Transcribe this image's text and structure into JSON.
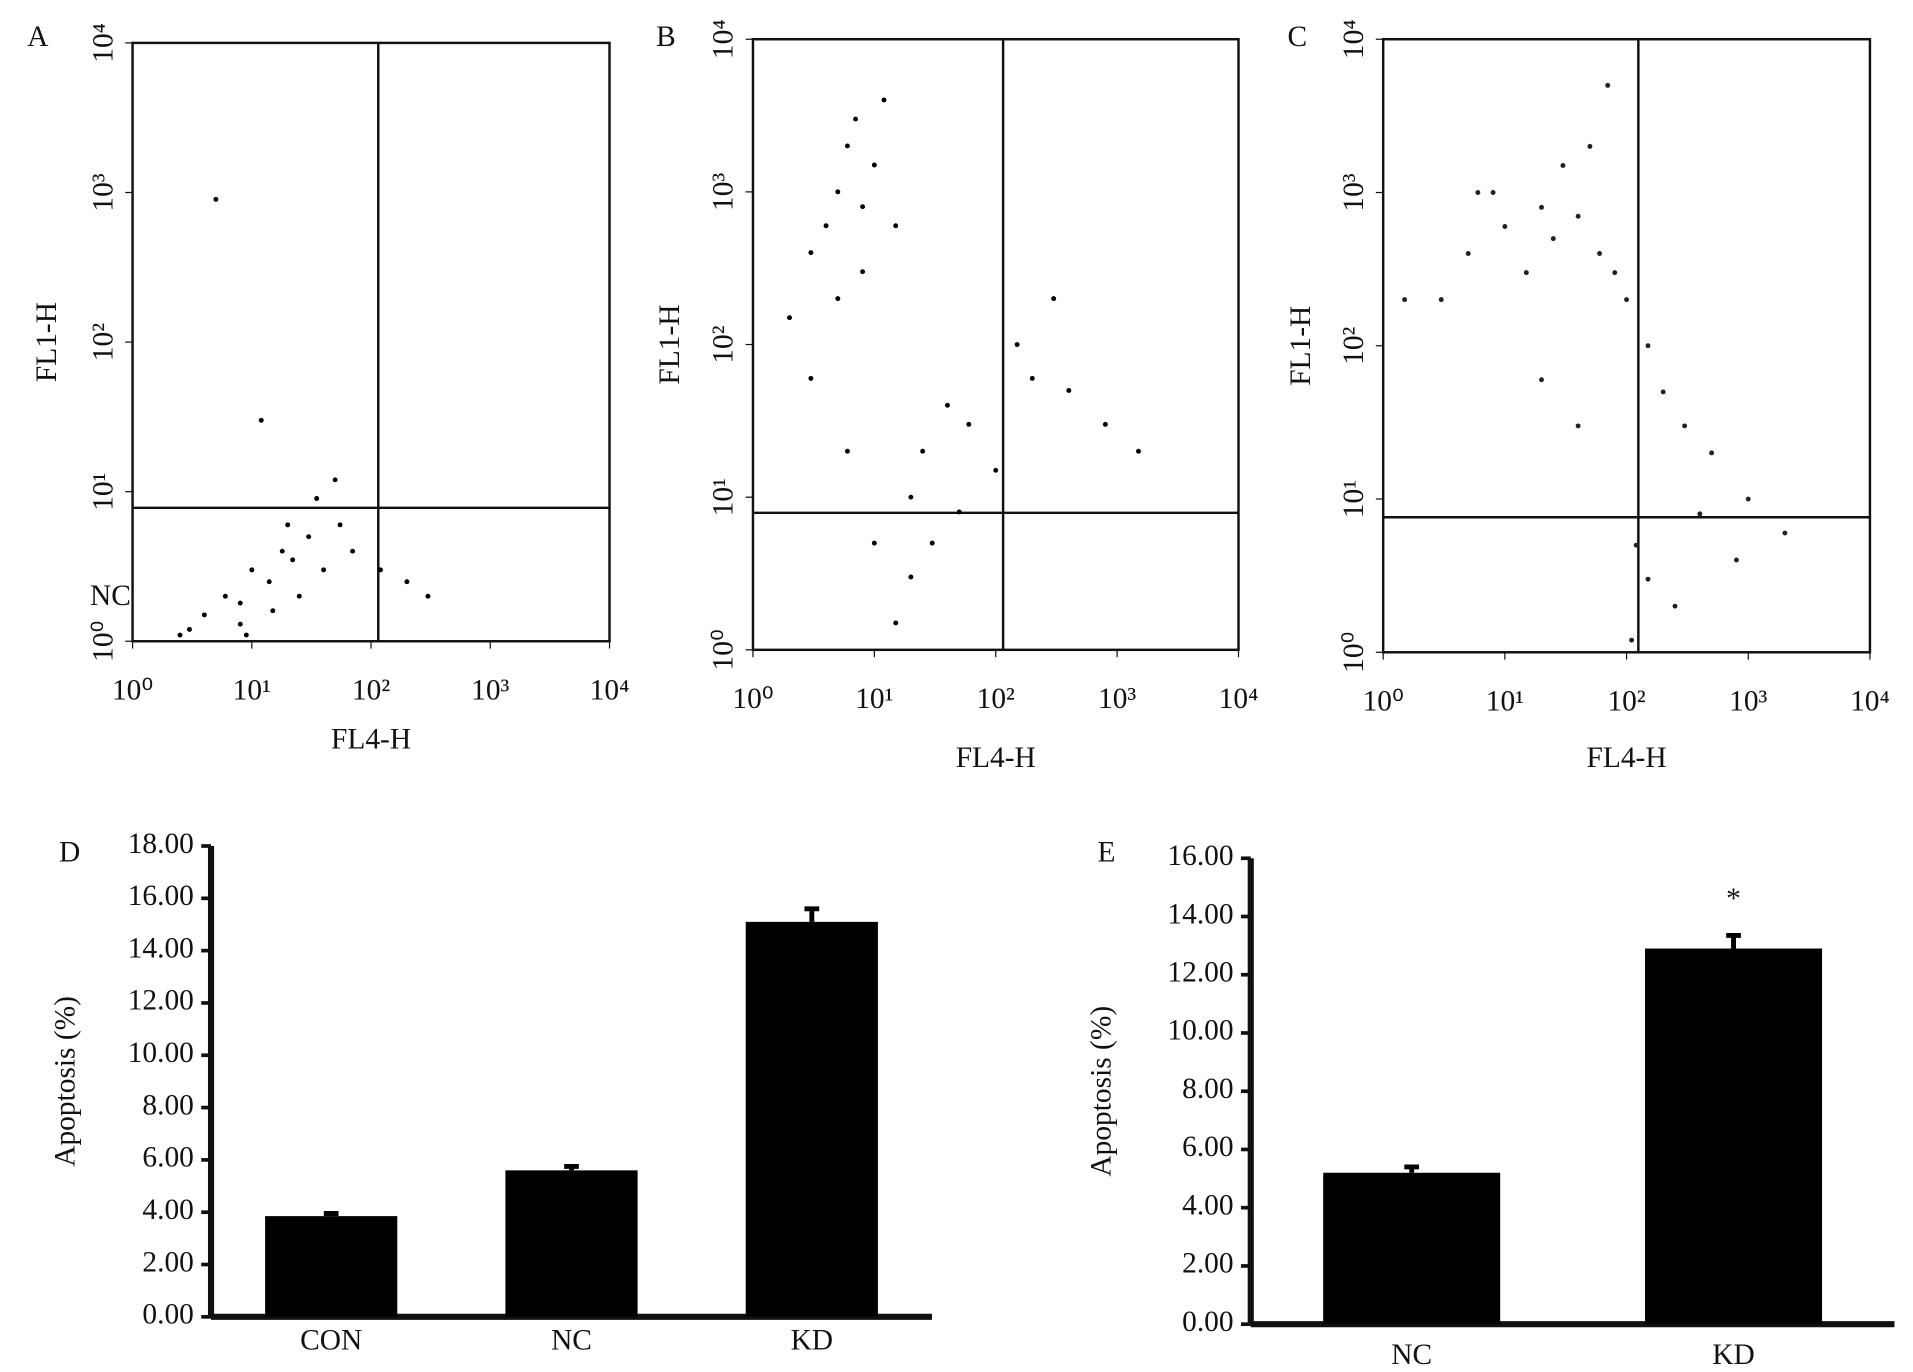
{
  "chart_data": [
    {
      "type": "scatter",
      "label": "A",
      "annotation": "NC",
      "xlabel": "FL4-H",
      "ylabel": "FL1-H",
      "xscale": "log",
      "yscale": "log",
      "color": "#000000",
      "xlim": [
        1,
        10000
      ],
      "ylim": [
        1,
        10000
      ],
      "xticks": [
        {
          "value": 1,
          "label": "10⁰"
        },
        {
          "value": 10,
          "label": "10¹"
        },
        {
          "value": 100,
          "label": "10²"
        },
        {
          "value": 1000,
          "label": "10³"
        },
        {
          "value": 10000,
          "label": "10⁴"
        }
      ],
      "yticks": [
        {
          "value": 1,
          "label": "10⁰"
        },
        {
          "value": 10,
          "label": "10¹"
        },
        {
          "value": 100,
          "label": "10²"
        },
        {
          "value": 1000,
          "label": "10³"
        },
        {
          "value": 10000,
          "label": "10⁴"
        }
      ],
      "quadrant_x": 115,
      "quadrant_y": 7.8,
      "x": [
        5,
        12,
        3,
        4,
        6,
        8,
        10,
        14,
        18,
        22,
        25,
        30,
        40,
        55,
        70,
        120,
        200,
        300,
        8,
        15,
        20,
        35,
        9,
        50,
        2.5
      ],
      "values": [
        900,
        30,
        1.2,
        1.5,
        2,
        1.8,
        3,
        2.5,
        4,
        3.5,
        2,
        5,
        3,
        6,
        4,
        3,
        2.5,
        2,
        1.3,
        1.6,
        6,
        9,
        1.1,
        12,
        1.1
      ]
    },
    {
      "type": "scatter",
      "label": "B",
      "xlabel": "FL4-H",
      "ylabel": "FL1-H",
      "xscale": "log",
      "yscale": "log",
      "color": "#000000",
      "xlim": [
        1,
        10000
      ],
      "ylim": [
        1,
        10000
      ],
      "xticks": [
        {
          "value": 1,
          "label": "10⁰"
        },
        {
          "value": 10,
          "label": "10¹"
        },
        {
          "value": 100,
          "label": "10²"
        },
        {
          "value": 1000,
          "label": "10³"
        },
        {
          "value": 10000,
          "label": "10⁴"
        }
      ],
      "yticks": [
        {
          "value": 1,
          "label": "10⁰"
        },
        {
          "value": 10,
          "label": "10¹"
        },
        {
          "value": 100,
          "label": "10²"
        },
        {
          "value": 1000,
          "label": "10³"
        },
        {
          "value": 10000,
          "label": "10⁴"
        }
      ],
      "quadrant_x": 115,
      "quadrant_y": 7.9,
      "x": [
        2,
        3,
        4,
        5,
        6,
        7,
        8,
        10,
        12,
        15,
        3,
        5,
        8,
        20,
        25,
        30,
        40,
        60,
        100,
        150,
        200,
        400,
        800,
        1500,
        20,
        15,
        50,
        300,
        6,
        10
      ],
      "values": [
        150,
        400,
        600,
        1000,
        2000,
        3000,
        800,
        1500,
        4000,
        600,
        60,
        200,
        300,
        10,
        20,
        5,
        40,
        30,
        15,
        100,
        60,
        50,
        30,
        20,
        3,
        1.5,
        8,
        200,
        20,
        5
      ]
    },
    {
      "type": "scatter",
      "label": "C",
      "xlabel": "FL4-H",
      "ylabel": "FL1-H",
      "xscale": "log",
      "yscale": "log",
      "color": "#222222",
      "xlim": [
        1,
        10000
      ],
      "ylim": [
        1,
        10000
      ],
      "xticks": [
        {
          "value": 1,
          "label": "10⁰"
        },
        {
          "value": 10,
          "label": "10¹"
        },
        {
          "value": 100,
          "label": "10²"
        },
        {
          "value": 1000,
          "label": "10³"
        },
        {
          "value": 10000,
          "label": "10⁴"
        }
      ],
      "yticks": [
        {
          "value": 1,
          "label": "10⁰"
        },
        {
          "value": 10,
          "label": "10¹"
        },
        {
          "value": 100,
          "label": "10²"
        },
        {
          "value": 1000,
          "label": "10³"
        },
        {
          "value": 10000,
          "label": "10⁴"
        }
      ],
      "quadrant_x": 125,
      "quadrant_y": 7.6,
      "x": [
        5,
        8,
        10,
        15,
        20,
        25,
        30,
        40,
        50,
        60,
        80,
        100,
        3,
        150,
        200,
        300,
        500,
        1000,
        2000,
        120,
        150,
        250,
        20,
        40,
        1.5,
        6,
        70,
        400,
        800,
        110
      ],
      "values": [
        400,
        1000,
        600,
        300,
        800,
        500,
        1500,
        700,
        2000,
        400,
        300,
        200,
        200,
        100,
        50,
        30,
        20,
        10,
        6,
        5,
        3,
        2,
        60,
        30,
        200,
        1000,
        5000,
        8,
        4,
        1.2
      ]
    },
    {
      "type": "bar",
      "label": "D",
      "ylabel": "Apoptosis (%)",
      "color": "#000000",
      "categories": [
        "CON",
        "NC",
        "KD"
      ],
      "values": [
        3.85,
        5.6,
        15.1
      ],
      "errors": [
        0.1,
        0.15,
        0.5
      ],
      "ylim": [
        0,
        18
      ],
      "yticks": [
        {
          "value": 0,
          "label": "0.00"
        },
        {
          "value": 2,
          "label": "2.00"
        },
        {
          "value": 4,
          "label": "4.00"
        },
        {
          "value": 6,
          "label": "6.00"
        },
        {
          "value": 8,
          "label": "8.00"
        },
        {
          "value": 10,
          "label": "10.00"
        },
        {
          "value": 12,
          "label": "12.00"
        },
        {
          "value": 14,
          "label": "14.00"
        },
        {
          "value": 16,
          "label": "16.00"
        },
        {
          "value": 18,
          "label": "18.00"
        }
      ]
    },
    {
      "type": "bar",
      "label": "E",
      "ylabel": "Apoptosis (%)",
      "color": "#000000",
      "annotation": "*",
      "categories": [
        "NC",
        "KD"
      ],
      "values": [
        5.2,
        12.9
      ],
      "errors": [
        0.2,
        0.45
      ],
      "ylim": [
        0,
        16
      ],
      "yticks": [
        {
          "value": 0,
          "label": "0.00"
        },
        {
          "value": 2,
          "label": "2.00"
        },
        {
          "value": 4,
          "label": "4.00"
        },
        {
          "value": 6,
          "label": "6.00"
        },
        {
          "value": 8,
          "label": "8.00"
        },
        {
          "value": 10,
          "label": "10.00"
        },
        {
          "value": 12,
          "label": "12.00"
        },
        {
          "value": 14,
          "label": "14.00"
        },
        {
          "value": 16,
          "label": "16.00"
        }
      ]
    }
  ]
}
